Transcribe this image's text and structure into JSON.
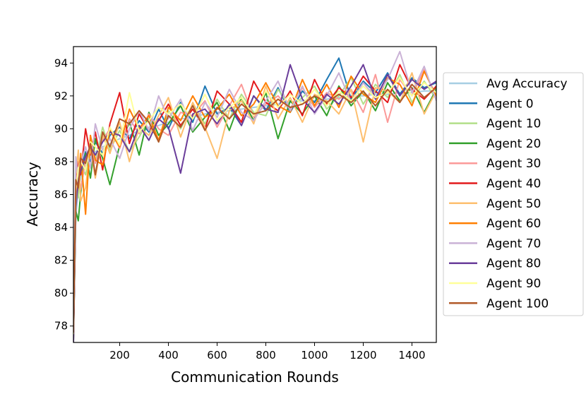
{
  "chart_data": {
    "type": "line",
    "title": "",
    "xlabel": "Communication Rounds",
    "ylabel": "Accuracy",
    "xlim": [
      10,
      1500
    ],
    "ylim": [
      77,
      95
    ],
    "x_ticks": [
      200,
      400,
      600,
      800,
      1000,
      1200,
      1400
    ],
    "y_ticks": [
      78,
      80,
      82,
      84,
      86,
      88,
      90,
      92,
      94
    ],
    "x_tick_labels": [
      "200",
      "400",
      "600",
      "800",
      "1000",
      "1200",
      "1400"
    ],
    "y_tick_labels": [
      "78",
      "80",
      "82",
      "84",
      "86",
      "88",
      "90",
      "92",
      "94"
    ],
    "grid": false,
    "legend_position": "right, outside plot",
    "x": [
      10,
      20,
      30,
      40,
      60,
      80,
      100,
      130,
      160,
      200,
      240,
      280,
      320,
      360,
      400,
      450,
      500,
      550,
      600,
      650,
      700,
      750,
      800,
      850,
      900,
      950,
      1000,
      1050,
      1100,
      1150,
      1200,
      1250,
      1300,
      1350,
      1400,
      1450,
      1500
    ],
    "series": [
      {
        "name": "Avg Accuracy",
        "color": "#a6cee3",
        "values": [
          77.5,
          84.8,
          86.2,
          87.0,
          87.8,
          88.3,
          88.6,
          88.9,
          89.1,
          89.4,
          89.6,
          89.9,
          90.1,
          90.2,
          90.4,
          90.6,
          90.7,
          90.9,
          91.0,
          91.1,
          91.2,
          91.3,
          91.4,
          91.5,
          91.6,
          91.7,
          91.7,
          91.8,
          91.9,
          92.0,
          92.0,
          92.1,
          92.1,
          92.2,
          92.2,
          92.3,
          92.3
        ]
      },
      {
        "name": "Agent 0",
        "color": "#1f78b4",
        "values": [
          77.0,
          85.5,
          86.8,
          87.5,
          88.6,
          88.0,
          89.2,
          88.5,
          89.6,
          90.1,
          89.4,
          90.5,
          89.8,
          91.2,
          90.0,
          91.6,
          90.4,
          92.6,
          90.9,
          91.3,
          90.2,
          92.0,
          91.1,
          92.5,
          91.0,
          92.3,
          91.6,
          93.0,
          94.3,
          91.8,
          92.9,
          92.2,
          93.4,
          92.1,
          93.1,
          92.5,
          92.8
        ]
      },
      {
        "name": "Agent 10",
        "color": "#b2df8a",
        "values": [
          77.2,
          86.5,
          85.8,
          87.8,
          87.2,
          88.8,
          88.0,
          90.1,
          88.7,
          89.9,
          88.6,
          89.5,
          90.6,
          89.2,
          91.1,
          90.0,
          91.5,
          90.3,
          91.8,
          90.6,
          92.1,
          91.0,
          90.8,
          92.4,
          91.3,
          91.9,
          92.6,
          91.2,
          92.0,
          93.1,
          91.5,
          92.7,
          91.9,
          93.3,
          91.6,
          92.9,
          91.8
        ]
      },
      {
        "name": "Agent 20",
        "color": "#33a02c",
        "values": [
          77.3,
          85.0,
          84.4,
          86.1,
          88.5,
          87.0,
          89.4,
          88.2,
          86.6,
          89.0,
          90.4,
          88.4,
          91.0,
          89.6,
          90.3,
          91.4,
          89.8,
          90.7,
          91.6,
          89.9,
          91.9,
          90.5,
          92.2,
          89.4,
          91.7,
          90.9,
          92.0,
          90.8,
          92.6,
          91.4,
          92.3,
          91.1,
          92.8,
          91.7,
          92.5,
          91.0,
          92.4
        ]
      },
      {
        "name": "Agent 30",
        "color": "#fb9a99",
        "values": [
          77.6,
          86.8,
          87.4,
          86.3,
          88.1,
          89.0,
          87.9,
          89.3,
          90.0,
          88.8,
          90.6,
          89.7,
          90.9,
          90.0,
          89.6,
          91.0,
          90.8,
          91.7,
          90.1,
          91.4,
          92.7,
          90.7,
          91.5,
          92.0,
          91.2,
          92.5,
          91.3,
          92.2,
          91.8,
          92.4,
          91.0,
          93.3,
          90.4,
          93.0,
          92.0,
          93.6,
          91.9
        ]
      },
      {
        "name": "Agent 40",
        "color": "#e31a1c",
        "values": [
          77.1,
          86.0,
          88.0,
          87.2,
          90.0,
          88.4,
          89.8,
          87.5,
          90.3,
          92.2,
          89.1,
          90.9,
          89.9,
          90.5,
          91.5,
          90.2,
          91.2,
          90.0,
          92.3,
          91.5,
          90.4,
          92.9,
          91.6,
          91.1,
          92.3,
          90.8,
          93.0,
          91.5,
          92.5,
          91.9,
          93.2,
          92.3,
          91.6,
          93.9,
          92.4,
          91.8,
          92.6
        ]
      },
      {
        "name": "Agent 50",
        "color": "#fdbf6f",
        "values": [
          77.4,
          87.2,
          88.7,
          85.6,
          86.4,
          88.9,
          87.0,
          89.6,
          88.5,
          90.4,
          88.0,
          90.1,
          89.6,
          90.8,
          91.9,
          89.5,
          91.6,
          90.1,
          88.2,
          91.1,
          91.7,
          90.3,
          92.6,
          90.6,
          91.9,
          90.4,
          92.1,
          91.7,
          90.9,
          92.4,
          89.2,
          92.5,
          92.3,
          91.6,
          93.4,
          90.9,
          92.3
        ]
      },
      {
        "name": "Agent 60",
        "color": "#ff7f00",
        "values": [
          77.8,
          85.7,
          86.5,
          88.5,
          84.8,
          89.6,
          88.1,
          87.8,
          89.9,
          88.9,
          91.2,
          90.0,
          90.8,
          89.3,
          91.3,
          90.5,
          92.0,
          90.7,
          91.2,
          92.1,
          90.8,
          91.5,
          92.8,
          91.4,
          91.0,
          93.0,
          91.4,
          92.7,
          91.3,
          93.2,
          92.1,
          91.6,
          93.1,
          92.7,
          91.4,
          93.5,
          92.0
        ]
      },
      {
        "name": "Agent 70",
        "color": "#cab2d6",
        "values": [
          77.2,
          88.3,
          87.0,
          87.9,
          88.9,
          87.6,
          90.3,
          88.7,
          89.4,
          88.2,
          90.0,
          91.1,
          89.9,
          92.0,
          90.6,
          91.8,
          89.9,
          91.6,
          90.7,
          92.4,
          91.0,
          90.5,
          91.7,
          92.9,
          91.1,
          92.6,
          90.9,
          92.0,
          93.4,
          91.6,
          92.8,
          91.9,
          93.0,
          94.7,
          92.2,
          93.8,
          91.7
        ]
      },
      {
        "name": "Agent 80",
        "color": "#6a3d9a",
        "values": [
          77.0,
          85.2,
          86.9,
          87.4,
          88.3,
          88.9,
          88.4,
          89.2,
          89.8,
          89.6,
          88.6,
          90.2,
          89.3,
          90.6,
          90.1,
          87.3,
          90.9,
          91.2,
          90.3,
          91.5,
          90.2,
          92.0,
          91.2,
          91.0,
          93.9,
          91.8,
          91.0,
          92.1,
          91.5,
          92.6,
          93.9,
          91.8,
          93.3,
          92.0,
          93.0,
          92.4,
          92.9
        ]
      },
      {
        "name": "Agent 90",
        "color": "#ffff99",
        "values": [
          77.5,
          86.2,
          87.6,
          88.0,
          87.5,
          89.2,
          88.9,
          88.4,
          90.1,
          89.0,
          92.2,
          89.8,
          90.5,
          91.3,
          90.9,
          91.5,
          90.6,
          92.1,
          90.5,
          91.3,
          91.9,
          90.8,
          92.3,
          91.3,
          92.1,
          91.5,
          92.4,
          91.4,
          92.3,
          91.7,
          92.6,
          91.9,
          92.2,
          93.1,
          92.0,
          92.8,
          92.2
        ]
      },
      {
        "name": "Agent 100",
        "color": "#b15928",
        "values": [
          77.6,
          86.9,
          86.4,
          88.2,
          87.9,
          89.1,
          87.2,
          89.8,
          88.9,
          90.6,
          90.3,
          91.1,
          90.4,
          89.2,
          90.8,
          90.1,
          91.4,
          89.9,
          91.3,
          90.6,
          91.5,
          90.9,
          91.1,
          91.8,
          91.3,
          91.5,
          92.0,
          91.6,
          92.1,
          91.6,
          92.3,
          91.4,
          92.4,
          91.6,
          92.7,
          91.9,
          92.5
        ]
      }
    ]
  }
}
